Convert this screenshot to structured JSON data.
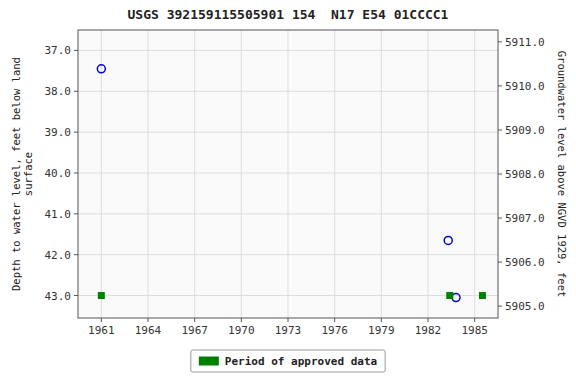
{
  "chart_data": {
    "type": "scatter",
    "title": "USGS 392159115505901 154  N17 E54 01CCCC1",
    "y_label": "Depth to water level, feet below land\nsurface",
    "y2_label": "Groundwater level above NGVD 1929, feet",
    "xlim": [
      1959.5,
      1986.5
    ],
    "ylim": [
      43.55,
      36.5
    ],
    "y2lim": [
      5904.73,
      5911.27
    ],
    "xticks": [
      1961,
      1964,
      1967,
      1970,
      1973,
      1976,
      1979,
      1982,
      1985
    ],
    "yticks": [
      {
        "value": 37.0,
        "label": "37.0"
      },
      {
        "value": 38.0,
        "label": "38.0"
      },
      {
        "value": 39.0,
        "label": "39.0"
      },
      {
        "value": 40.0,
        "label": "40.0"
      },
      {
        "value": 41.0,
        "label": "41.0"
      },
      {
        "value": 42.0,
        "label": "42.0"
      },
      {
        "value": 43.0,
        "label": "43.0"
      }
    ],
    "y2ticks": [
      {
        "value": 5911.0,
        "label": "5911.0"
      },
      {
        "value": 5910.0,
        "label": "5910.0"
      },
      {
        "value": 5909.0,
        "label": "5909.0"
      },
      {
        "value": 5908.0,
        "label": "5908.0"
      },
      {
        "value": 5907.0,
        "label": "5907.0"
      },
      {
        "value": 5906.0,
        "label": "5906.0"
      },
      {
        "value": 5905.0,
        "label": "5905.0"
      }
    ],
    "grid": true,
    "legend": "bottom",
    "series": [
      {
        "color": "#0000cc",
        "marker": "circle",
        "x": [
          1961.0,
          1983.3,
          1983.8
        ],
        "values": [
          37.45,
          41.65,
          43.05
        ]
      },
      {
        "name": "Period of approved data",
        "color": "#008000",
        "marker": "square",
        "x": [
          1961.0,
          1983.4,
          1985.5
        ],
        "values": [
          43.0,
          43.0,
          43.0
        ]
      }
    ]
  }
}
